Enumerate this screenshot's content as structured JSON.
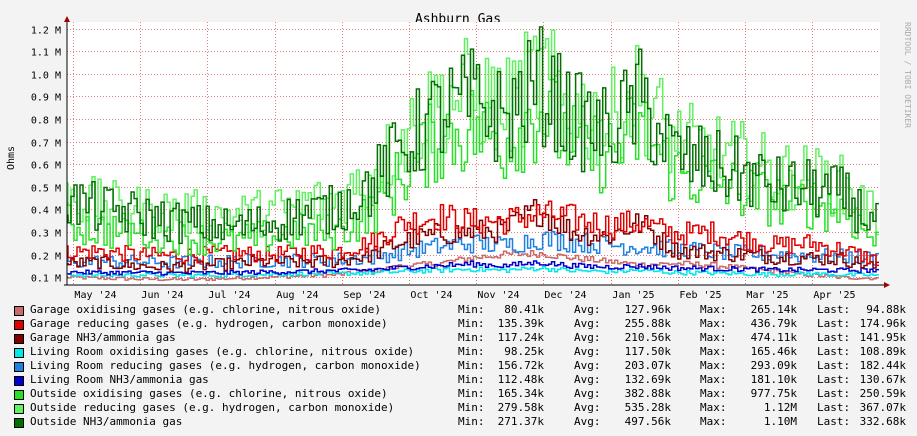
{
  "chart_data": {
    "type": "line",
    "title": "Ashburn Gas",
    "ylabel": "Ohms",
    "watermark": "RRDTOOL / TOBI OETIKER",
    "ylim": [
      65000,
      1230000
    ],
    "y_ticks": [
      {
        "value": 100000,
        "label": "0.1 M"
      },
      {
        "value": 200000,
        "label": "0.2 M"
      },
      {
        "value": 300000,
        "label": "0.3 M"
      },
      {
        "value": 400000,
        "label": "0.4 M"
      },
      {
        "value": 500000,
        "label": "0.5 M"
      },
      {
        "value": 600000,
        "label": "0.6 M"
      },
      {
        "value": 700000,
        "label": "0.7 M"
      },
      {
        "value": 800000,
        "label": "0.8 M"
      },
      {
        "value": 900000,
        "label": "0.9 M"
      },
      {
        "value": 1000000,
        "label": "1.0 M"
      },
      {
        "value": 1100000,
        "label": "1.1 M"
      },
      {
        "value": 1200000,
        "label": "1.2 M"
      }
    ],
    "x_ticks": [
      "May '24",
      "Jun '24",
      "Jul '24",
      "Aug '24",
      "Sep '24",
      "Oct '24",
      "Nov '24",
      "Dec '24",
      "Jan '25",
      "Feb '25",
      "Mar '25",
      "Apr '25"
    ],
    "grid": true,
    "legend_position": "bottom",
    "stat_labels": {
      "min": "Min:",
      "avg": "Avg:",
      "max": "Max:",
      "last": "Last:"
    },
    "series": [
      {
        "name": "Garage oxidising gases (e.g. chlorine, nitrous oxide)",
        "color": "#c86b6b",
        "min": "80.41k",
        "avg": "127.96k",
        "max": "265.14k",
        "last": "94.88k",
        "values": [
          100000,
          95000,
          92000,
          90000,
          90000,
          95000,
          100000,
          105000,
          110000,
          125000,
          150000,
          160000,
          185000,
          200000,
          205000,
          185000,
          170000,
          155000,
          160000,
          155000,
          140000,
          125000,
          110000,
          98000,
          95000
        ]
      },
      {
        "name": "Garage reducing gases (e.g. hydrogen, carbon monoxide)",
        "color": "#e00000",
        "min": "135.39k",
        "avg": "255.88k",
        "max": "436.79k",
        "last": "174.96k",
        "values": [
          210000,
          215000,
          200000,
          195000,
          200000,
          205000,
          200000,
          210000,
          215000,
          250000,
          340000,
          370000,
          345000,
          350000,
          380000,
          360000,
          330000,
          340000,
          290000,
          300000,
          270000,
          240000,
          250000,
          220000,
          175000
        ]
      },
      {
        "name": "Garage NH3/ammonia gas",
        "color": "#800000",
        "min": "117.24k",
        "avg": "210.56k",
        "max": "474.11k",
        "last": "141.95k",
        "values": [
          160000,
          165000,
          150000,
          145000,
          150000,
          160000,
          170000,
          165000,
          170000,
          200000,
          260000,
          290000,
          300000,
          310000,
          400000,
          300000,
          280000,
          340000,
          220000,
          210000,
          200000,
          190000,
          185000,
          180000,
          142000
        ]
      },
      {
        "name": "Living Room oxidising gases (e.g. chlorine, nitrous oxide)",
        "color": "#00e8e8",
        "min": "98.25k",
        "avg": "117.50k",
        "max": "165.46k",
        "last": "108.89k",
        "values": [
          112000,
          108000,
          110000,
          108000,
          108000,
          110000,
          112000,
          115000,
          115000,
          118000,
          125000,
          130000,
          135000,
          130000,
          140000,
          128000,
          125000,
          130000,
          120000,
          118000,
          115000,
          112000,
          115000,
          110000,
          109000
        ]
      },
      {
        "name": "Living Room reducing gases (e.g. hydrogen, carbon monoxide)",
        "color": "#2080e0",
        "min": "156.72k",
        "avg": "203.07k",
        "max": "293.09k",
        "last": "182.44k",
        "values": [
          170000,
          168000,
          168000,
          165000,
          168000,
          170000,
          172000,
          175000,
          178000,
          185000,
          215000,
          235000,
          250000,
          240000,
          270000,
          255000,
          245000,
          235000,
          225000,
          215000,
          205000,
          200000,
          195000,
          190000,
          182000
        ]
      },
      {
        "name": "Living Room NH3/ammonia gas",
        "color": "#0000d0",
        "min": "112.48k",
        "avg": "132.69k",
        "max": "181.10k",
        "last": "130.67k",
        "values": [
          122000,
          120000,
          120000,
          118000,
          118000,
          120000,
          122000,
          125000,
          128000,
          132000,
          142000,
          150000,
          158000,
          150000,
          165000,
          150000,
          145000,
          148000,
          140000,
          138000,
          135000,
          132000,
          132000,
          130000,
          131000
        ]
      },
      {
        "name": "Outside oxidising gases (e.g. chlorine, nitrous oxide)",
        "color": "#28e028",
        "min": "165.34k",
        "avg": "382.88k",
        "max": "977.75k",
        "last": "250.59k",
        "values": [
          340000,
          310000,
          300000,
          285000,
          270000,
          260000,
          280000,
          300000,
          300000,
          380000,
          560000,
          720000,
          760000,
          700000,
          850000,
          690000,
          640000,
          760000,
          560000,
          530000,
          480000,
          440000,
          430000,
          400000,
          251000
        ]
      },
      {
        "name": "Outside reducing gases (e.g. hydrogen, carbon monoxide)",
        "color": "#60f060",
        "min": "279.58k",
        "avg": "535.28k",
        "max": "1.12M",
        "last": "367.07k",
        "values": [
          460000,
          420000,
          400000,
          390000,
          380000,
          370000,
          390000,
          420000,
          440000,
          540000,
          720000,
          870000,
          920000,
          840000,
          1000000,
          840000,
          780000,
          920000,
          700000,
          660000,
          620000,
          560000,
          540000,
          500000,
          367000
        ]
      },
      {
        "name": "Outside NH3/ammonia gas",
        "color": "#007000",
        "min": "271.37k",
        "avg": "497.56k",
        "max": "1.10M",
        "last": "332.68k",
        "values": [
          440000,
          400000,
          380000,
          350000,
          330000,
          320000,
          340000,
          380000,
          400000,
          500000,
          680000,
          820000,
          880000,
          800000,
          960000,
          800000,
          740000,
          880000,
          640000,
          600000,
          560000,
          500000,
          490000,
          460000,
          333000
        ]
      }
    ]
  }
}
